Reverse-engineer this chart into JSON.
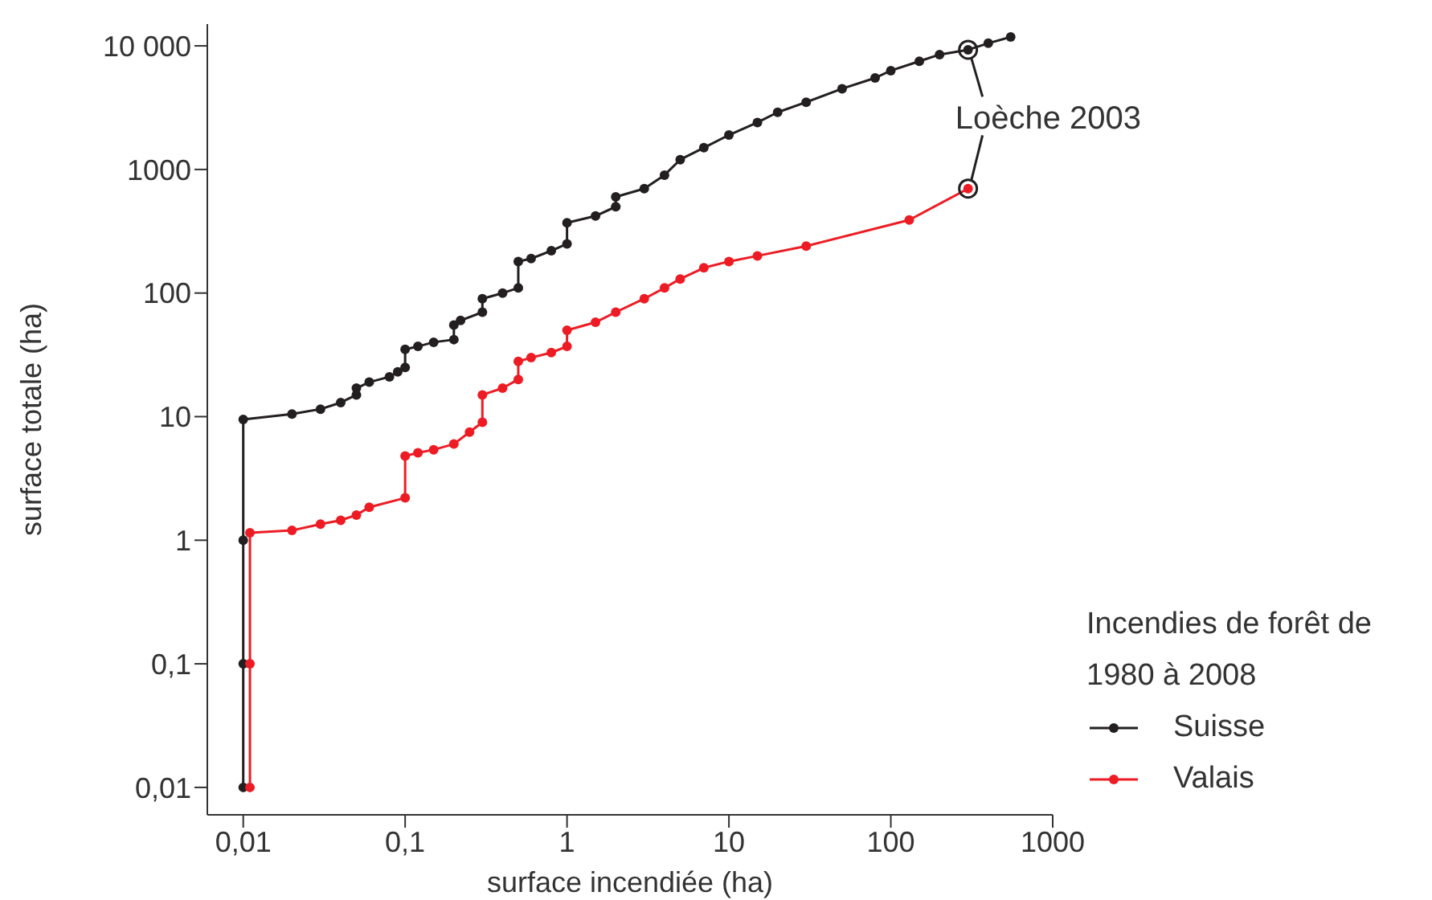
{
  "chart_data": {
    "type": "line",
    "xlabel": "surface incendiée (ha)",
    "ylabel": "surface totale (ha)",
    "legend_title": "Incendies de forêt de 1980 à 2008",
    "legend": "bottom right",
    "log": "xy",
    "marker": "circle",
    "grid": false,
    "xlim": [
      0.006,
      1000
    ],
    "ylim": [
      0.006,
      15000
    ],
    "xticks": [
      {
        "value": 0.01,
        "label": "0,01"
      },
      {
        "value": 0.1,
        "label": "0,1"
      },
      1,
      10,
      100,
      1000
    ],
    "yticks": [
      {
        "value": 0.01,
        "label": "0,01"
      },
      {
        "value": 0.1,
        "label": "0,1"
      },
      1,
      10,
      100,
      1000,
      {
        "value": 10000,
        "label": "10 000"
      }
    ],
    "annotations": [
      {
        "text": "Loèche 2003",
        "x": 300,
        "y": 9300
      }
    ],
    "series": [
      {
        "name": "Suisse",
        "color": "#231f20",
        "x": [
          0.01,
          0.01,
          0.01,
          0.01,
          0.02,
          0.03,
          0.04,
          0.05,
          0.05,
          0.06,
          0.08,
          0.09,
          0.1,
          0.1,
          0.12,
          0.15,
          0.2,
          0.2,
          0.22,
          0.3,
          0.3,
          0.4,
          0.5,
          0.5,
          0.6,
          0.8,
          1,
          1,
          1.5,
          2,
          2,
          3,
          4,
          5,
          7,
          10,
          15,
          20,
          30,
          50,
          80,
          100,
          150,
          200,
          300,
          400,
          550
        ],
        "values": [
          0.01,
          0.1,
          1,
          9.5,
          10.5,
          11.5,
          13,
          15,
          17,
          19,
          21,
          23,
          25,
          35,
          37,
          40,
          42,
          55,
          60,
          70,
          90,
          100,
          110,
          180,
          190,
          220,
          250,
          370,
          420,
          500,
          600,
          700,
          900,
          1200,
          1500,
          1900,
          2400,
          2900,
          3500,
          4500,
          5500,
          6300,
          7500,
          8500,
          9300,
          10500,
          11800
        ]
      },
      {
        "name": "Valais",
        "color": "#ed1c24",
        "x": [
          0.011,
          0.011,
          0.011,
          0.02,
          0.03,
          0.04,
          0.05,
          0.06,
          0.1,
          0.1,
          0.12,
          0.15,
          0.2,
          0.25,
          0.3,
          0.3,
          0.4,
          0.5,
          0.5,
          0.6,
          0.8,
          1,
          1,
          1.5,
          2,
          3,
          4,
          5,
          7,
          10,
          15,
          30,
          130,
          300
        ],
        "values": [
          0.01,
          0.1,
          1.15,
          1.2,
          1.35,
          1.45,
          1.6,
          1.85,
          2.2,
          4.8,
          5.1,
          5.4,
          6,
          7.5,
          9,
          15,
          17,
          20,
          28,
          30,
          33,
          37,
          50,
          58,
          70,
          90,
          110,
          130,
          160,
          180,
          200,
          240,
          390,
          700
        ]
      }
    ]
  }
}
